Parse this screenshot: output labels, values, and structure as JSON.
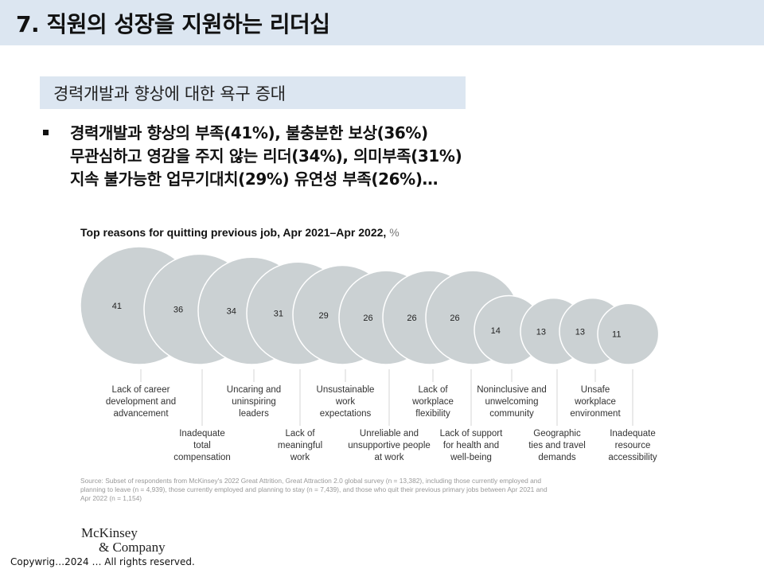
{
  "slide": {
    "title": "7. 직원의 성장을 지원하는 리더십",
    "subtitle": "경력개발과 향상에 대한 욕구 증대",
    "bullet_lines": [
      "경력개발과 향상의 부족(41%), 불충분한 보상(36%)",
      "무관심하고 영감을 주지 않는 리더(34%), 의미부족(31%)",
      "지속 불가능한 업무기대치(29%) 유연성 부족(26%)…"
    ],
    "copyright": "Copywrig…2024 … All rights reserved.",
    "colors": {
      "header_band": "#dce6f1",
      "circle_fill": "#cbd1d3",
      "circle_stroke": "#ffffff"
    }
  },
  "chart": {
    "title": "Top reasons for quitting previous job, Apr 2021–Apr 2022,",
    "unit": "%",
    "source_lines": [
      "Source: Subset of respondents from McKinsey's 2022 Great Attrition, Great Attraction 2.0 global survey (n = 13,382), including those currently employed and",
      "planning to leave (n = 4,939), those currently employed and planning to stay (n = 7,439), and those who quit their previous primary jobs between Apr 2021 and",
      "Apr 2022 (n = 1,154)"
    ],
    "logo_line1": "McKinsey",
    "logo_line2": "& Company",
    "labels": [
      "Lack of career\ndevelopment and\nadvancement",
      "Inadequate\ntotal\ncompensation",
      "Uncaring and\nuninspiring\nleaders",
      "Lack of\nmeaningful\nwork",
      "Unsustainable\nwork\nexpectations",
      "Unreliable and\nunsupportive people\nat work",
      "Lack of\nworkplace\nflexibility",
      "Lack of support\nfor health and\nwell-being",
      "Noninclusive and\nunwelcoming\ncommunity",
      "Geographic\nties and travel\ndemands",
      "Unsafe\nworkplace\nenvironment",
      "Inadequate\nresource\naccessibility"
    ]
  },
  "chart_data": {
    "type": "bubble",
    "title": "Top reasons for quitting previous job, Apr 2021–Apr 2022, %",
    "categories": [
      "Lack of career development and advancement",
      "Inadequate total compensation",
      "Uncaring and uninspiring leaders",
      "Lack of meaningful work",
      "Unsustainable work expectations",
      "Unreliable and unsupportive people at work",
      "Lack of workplace flexibility",
      "Lack of support for health and well-being",
      "Noninclusive and unwelcoming community",
      "Geographic ties and travel demands",
      "Unsafe workplace environment",
      "Inadequate resource accessibility"
    ],
    "values": [
      41,
      36,
      34,
      31,
      29,
      26,
      26,
      26,
      14,
      13,
      13,
      11
    ],
    "unit": "%",
    "xlabel": "",
    "ylabel": "",
    "grid": false,
    "legend": "none"
  }
}
